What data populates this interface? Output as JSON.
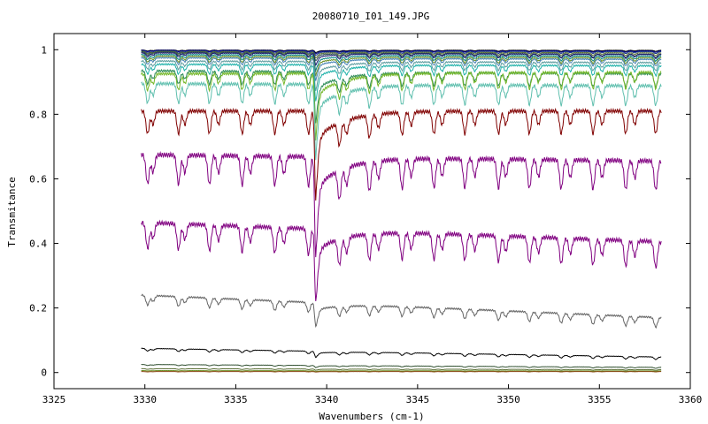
{
  "chart_data": {
    "type": "line",
    "title": "20080710_I01_149.JPG",
    "xlabel": "Wavenumbers (cm-1)",
    "ylabel": "Transmitance",
    "xlim": [
      3325,
      3360
    ],
    "ylim": [
      -0.05,
      1.05
    ],
    "x_ticks": [
      3325,
      3330,
      3335,
      3340,
      3345,
      3350,
      3355,
      3360
    ],
    "y_ticks": [
      0,
      0.2,
      0.4,
      0.6,
      0.8,
      1
    ],
    "x_tick_labels": [
      "3325",
      "3330",
      "3335",
      "3340",
      "3345",
      "3350",
      "3355",
      "3360"
    ],
    "y_tick_labels": [
      "0",
      "0.2",
      "0.4",
      "0.6",
      "0.8",
      "1"
    ],
    "x_range_data": [
      3329.8,
      3358.4
    ],
    "big_dip_x": 3339.4,
    "line_positions": [
      3330.15,
      3330.45,
      3331.85,
      3332.2,
      3333.55,
      3334.05,
      3335.35,
      3335.8,
      3337.15,
      3337.65,
      3339.0,
      3339.45,
      3340.7,
      3341.1,
      3342.35,
      3342.85,
      3344.15,
      3344.65,
      3345.9,
      3346.35,
      3347.6,
      3348.15,
      3349.45,
      3349.85,
      3351.15,
      3351.65,
      3352.9,
      3353.4,
      3354.65,
      3355.15,
      3356.45,
      3356.95,
      3358.1
    ],
    "grid": false,
    "legend": "none",
    "series": [
      {
        "baseline_start": 0.999,
        "baseline_end": 0.998,
        "line_depth": 0.003,
        "big_dip_depth": 0.006,
        "color": "#000000"
      },
      {
        "baseline_start": 0.998,
        "baseline_end": 0.996,
        "line_depth": 0.004,
        "big_dip_depth": 0.008,
        "color": "#00008b"
      },
      {
        "baseline_start": 0.996,
        "baseline_end": 0.994,
        "line_depth": 0.006,
        "big_dip_depth": 0.01,
        "color": "#1e3a8a"
      },
      {
        "baseline_start": 0.995,
        "baseline_end": 0.99,
        "line_depth": 0.008,
        "big_dip_depth": 0.015,
        "color": "#556b2f"
      },
      {
        "baseline_start": 0.993,
        "baseline_end": 0.986,
        "line_depth": 0.01,
        "big_dip_depth": 0.02,
        "color": "#2f4f4f"
      },
      {
        "baseline_start": 0.99,
        "baseline_end": 0.985,
        "line_depth": 0.012,
        "big_dip_depth": 0.03,
        "color": "#191970"
      },
      {
        "baseline_start": 0.985,
        "baseline_end": 0.98,
        "line_depth": 0.015,
        "big_dip_depth": 0.04,
        "color": "#008080"
      },
      {
        "baseline_start": 0.98,
        "baseline_end": 0.975,
        "line_depth": 0.018,
        "big_dip_depth": 0.05,
        "color": "#6b8e23"
      },
      {
        "baseline_start": 0.975,
        "baseline_end": 0.97,
        "line_depth": 0.02,
        "big_dip_depth": 0.06,
        "color": "#4682b4"
      },
      {
        "baseline_start": 0.965,
        "baseline_end": 0.96,
        "line_depth": 0.025,
        "big_dip_depth": 0.08,
        "color": "#5f9ea0"
      },
      {
        "baseline_start": 0.955,
        "baseline_end": 0.95,
        "line_depth": 0.03,
        "big_dip_depth": 0.1,
        "color": "#20b2aa"
      },
      {
        "baseline_start": 0.935,
        "baseline_end": 0.925,
        "line_depth": 0.04,
        "big_dip_depth": 0.14,
        "color": "#2e8b57"
      },
      {
        "baseline_start": 0.925,
        "baseline_end": 0.93,
        "line_depth": 0.05,
        "big_dip_depth": 0.18,
        "color": "#76b82a"
      },
      {
        "baseline_start": 0.895,
        "baseline_end": 0.888,
        "line_depth": 0.06,
        "big_dip_depth": 0.2,
        "color": "#5fbfae"
      },
      {
        "baseline_start": 0.81,
        "baseline_end": 0.81,
        "line_depth": 0.07,
        "big_dip_depth": 0.24,
        "color": "#800000"
      },
      {
        "baseline_start": 0.675,
        "baseline_end": 0.655,
        "line_depth": 0.09,
        "big_dip_depth": 0.27,
        "color": "#800080"
      },
      {
        "baseline_start": 0.465,
        "baseline_end": 0.405,
        "line_depth": 0.08,
        "big_dip_depth": 0.19,
        "color": "#800080"
      },
      {
        "baseline_start": 0.24,
        "baseline_end": 0.17,
        "line_depth": 0.03,
        "big_dip_depth": 0.06,
        "color": "#666666"
      },
      {
        "baseline_start": 0.075,
        "baseline_end": 0.048,
        "line_depth": 0.008,
        "big_dip_depth": 0.015,
        "color": "#000000"
      },
      {
        "baseline_start": 0.025,
        "baseline_end": 0.016,
        "line_depth": 0.003,
        "big_dip_depth": 0.005,
        "color": "#2f4f2f"
      },
      {
        "baseline_start": 0.012,
        "baseline_end": 0.009,
        "line_depth": 0.002,
        "big_dip_depth": 0.003,
        "color": "#556b2f"
      },
      {
        "baseline_start": 0.006,
        "baseline_end": 0.005,
        "line_depth": 0.001,
        "big_dip_depth": 0.002,
        "color": "#6b8e23"
      },
      {
        "baseline_start": 0.003,
        "baseline_end": 0.003,
        "line_depth": 0.001,
        "big_dip_depth": 0.001,
        "color": "#8b4513"
      }
    ]
  }
}
